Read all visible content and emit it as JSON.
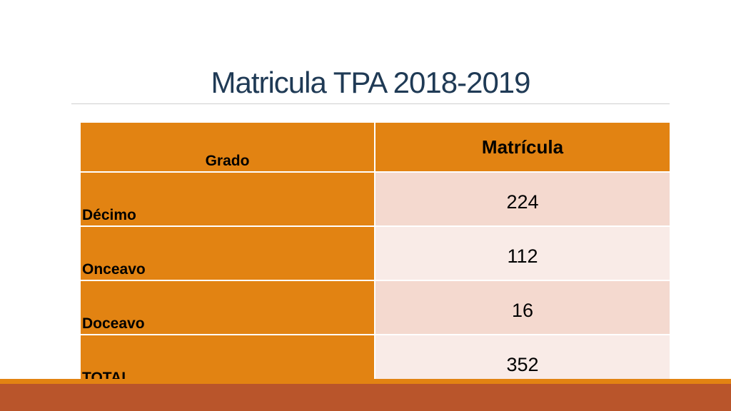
{
  "slide": {
    "title": "Matricula TPA 2018-2019"
  },
  "table": {
    "headers": [
      "Grado",
      "Matrícula"
    ],
    "rows": [
      {
        "grado": "Décimo",
        "matricula": "224"
      },
      {
        "grado": "Onceavo",
        "matricula": "112"
      },
      {
        "grado": "Doceavo",
        "matricula": "16"
      },
      {
        "grado": "TOTAL",
        "matricula": "352"
      }
    ]
  },
  "colors": {
    "header_fill": "#e28312",
    "row_fill_dark": "#f4d9cf",
    "row_fill_light": "#f9ebe7",
    "footer_band": "#b9552b",
    "title_text": "#1f3a55"
  }
}
